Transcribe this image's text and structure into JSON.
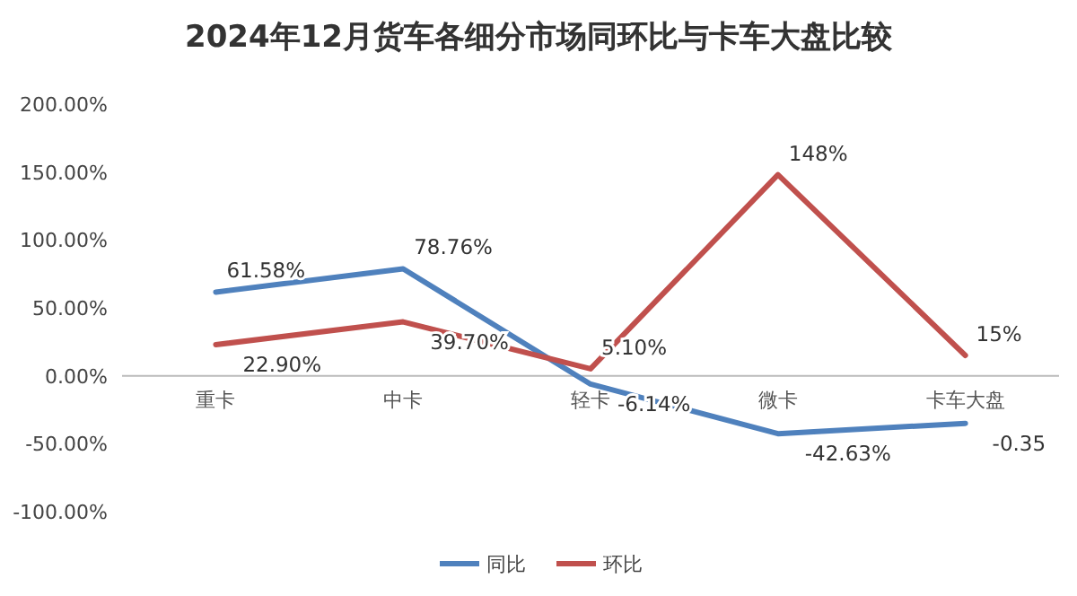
{
  "chart_data": {
    "type": "line",
    "title": "2024年12月货车各细分市场同环比与卡车大盘比较",
    "categories": [
      "重卡",
      "中卡",
      "轻卡",
      "微卡",
      "卡车大盘"
    ],
    "series": [
      {
        "name": "同比",
        "color": "#4f81bd",
        "values": [
          61.58,
          78.76,
          -6.14,
          -42.63,
          -35
        ],
        "value_labels": [
          "61.58%",
          "78.76%",
          "-6.14%",
          "-42.63%",
          null
        ]
      },
      {
        "name": "环比",
        "color": "#c0504d",
        "values": [
          22.9,
          39.7,
          5.1,
          148,
          15
        ],
        "value_labels": [
          "22.90%",
          "39.70%",
          "5.10%",
          "148%",
          "15%"
        ]
      }
    ],
    "ylim": [
      -100,
      200
    ],
    "yticks": [
      {
        "value": -100,
        "label": "-100.00%"
      },
      {
        "value": -50,
        "label": "-50.00%"
      },
      {
        "value": 0,
        "label": "0.00%"
      },
      {
        "value": 50,
        "label": "50.00%"
      },
      {
        "value": 100,
        "label": "100.00%"
      },
      {
        "value": 150,
        "label": "150.00%"
      },
      {
        "value": 200,
        "label": "200.00%"
      }
    ],
    "annotations": [
      {
        "text": "-0.35",
        "x": "卡车大盘",
        "y": -35
      }
    ],
    "legend": "bottom",
    "marker": "none",
    "line_style": "solid"
  }
}
